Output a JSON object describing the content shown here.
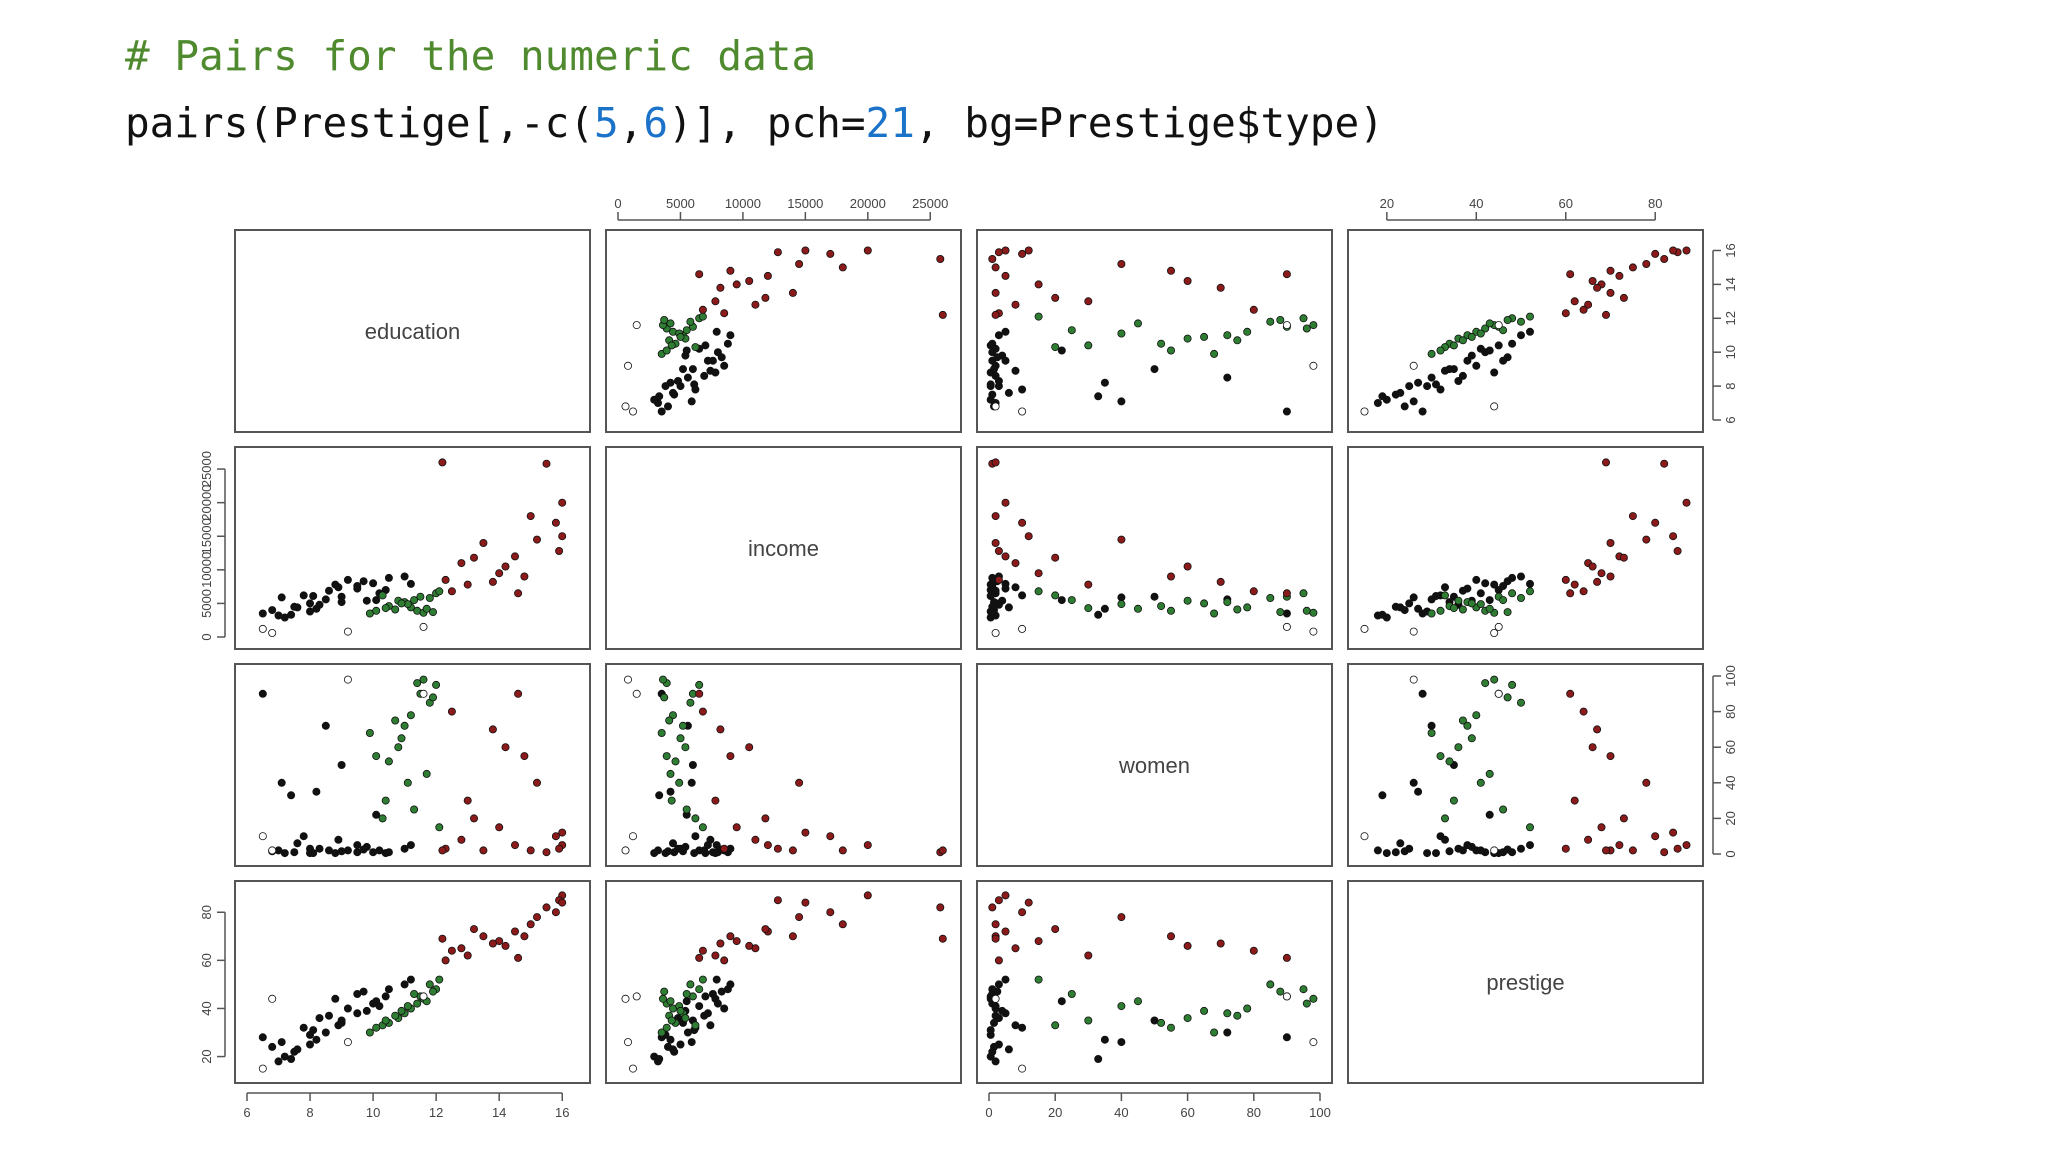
{
  "code": {
    "comment": "# Pairs for the numeric data",
    "parts": [
      {
        "text": "pairs(Prestige[,-c(",
        "kind": "plain"
      },
      {
        "text": "5",
        "kind": "num"
      },
      {
        "text": ",",
        "kind": "plain"
      },
      {
        "text": "6",
        "kind": "num"
      },
      {
        "text": ")], pch=",
        "kind": "plain"
      },
      {
        "text": "21",
        "kind": "num"
      },
      {
        "text": ", bg=Prestige$type)",
        "kind": "plain"
      }
    ]
  },
  "chart_data": {
    "type": "scatter",
    "title": "",
    "matrix": "pairs",
    "variables": [
      "education",
      "income",
      "women",
      "prestige"
    ],
    "ranges": {
      "education": [
        6,
        16.5
      ],
      "income": [
        0,
        26500
      ],
      "women": [
        0,
        100
      ],
      "prestige": [
        14,
        88
      ]
    },
    "ticks": {
      "education": [
        6,
        8,
        10,
        12,
        14,
        16
      ],
      "income": [
        0,
        5000,
        10000,
        15000,
        20000,
        25000
      ],
      "women": [
        0,
        20,
        40,
        60,
        80,
        100
      ],
      "prestige": [
        20,
        40,
        60,
        80
      ]
    },
    "tick_labels": {
      "education": [
        "6",
        "8",
        "10",
        "12",
        "14",
        "16"
      ],
      "income": [
        "0",
        "5000",
        "10000",
        "15000",
        "20000",
        "25000"
      ],
      "women": [
        "0",
        "20",
        "40",
        "60",
        "80",
        "100"
      ],
      "prestige": [
        "20",
        "40",
        "60",
        "80"
      ]
    },
    "axis_placement": {
      "top": [
        [
          1,
          "income"
        ],
        [
          3,
          "prestige"
        ]
      ],
      "right": [
        [
          0,
          "education"
        ],
        [
          2,
          "women"
        ]
      ],
      "bottom": [
        [
          0,
          "education"
        ],
        [
          2,
          "women"
        ]
      ],
      "left": [
        [
          1,
          "income"
        ],
        [
          3,
          "prestige"
        ]
      ]
    },
    "colors": {
      "bc": "#111111",
      "wc": "#2e7d32",
      "prof": "#8b1a1a",
      "na": "#ffffff"
    },
    "series": [
      {
        "group": "bc",
        "fill": "#111111",
        "points": [
          [
            7.0,
            3200,
            2.0,
            18
          ],
          [
            7.5,
            4500,
            1.0,
            22
          ],
          [
            8.0,
            5000,
            3.0,
            25
          ],
          [
            8.2,
            4200,
            35.0,
            27
          ],
          [
            6.5,
            3500,
            90.0,
            28
          ],
          [
            7.2,
            2900,
            0.5,
            20
          ],
          [
            8.5,
            5600,
            72.0,
            30
          ],
          [
            9.0,
            6000,
            50.0,
            35
          ],
          [
            9.5,
            7200,
            5.0,
            38
          ],
          [
            10.0,
            8000,
            1.0,
            42
          ],
          [
            8.8,
            7800,
            0.5,
            44
          ],
          [
            9.2,
            8500,
            2.0,
            40
          ],
          [
            10.4,
            7000,
            0.5,
            45
          ],
          [
            7.8,
            6200,
            10.0,
            32
          ],
          [
            8.3,
            4800,
            3.0,
            36
          ],
          [
            9.8,
            5400,
            4.0,
            39
          ],
          [
            10.2,
            6500,
            2.0,
            41
          ],
          [
            7.1,
            5900,
            40.0,
            26
          ],
          [
            6.8,
            4000,
            1.5,
            24
          ],
          [
            8.0,
            3800,
            0.5,
            29
          ],
          [
            10.5,
            8800,
            1.0,
            48
          ],
          [
            11.0,
            9000,
            3.0,
            50
          ],
          [
            9.5,
            7600,
            1.0,
            46
          ],
          [
            8.6,
            6900,
            2.0,
            37
          ],
          [
            7.4,
            3300,
            33.0,
            19
          ],
          [
            9.0,
            5200,
            1.5,
            34
          ],
          [
            10.1,
            5500,
            22.0,
            43
          ],
          [
            8.1,
            6100,
            0.5,
            31
          ],
          [
            11.2,
            7900,
            5.0,
            52
          ],
          [
            9.7,
            8300,
            2.5,
            47
          ],
          [
            8.9,
            7400,
            8.0,
            33
          ],
          [
            7.6,
            4400,
            6.0,
            23
          ]
        ]
      },
      {
        "group": "wc",
        "fill": "#2e7d32",
        "points": [
          [
            9.9,
            3500,
            68.0,
            30
          ],
          [
            10.5,
            4600,
            52.0,
            34
          ],
          [
            11.0,
            5200,
            72.0,
            38
          ],
          [
            11.4,
            3900,
            96.0,
            42
          ],
          [
            11.5,
            6000,
            90.0,
            45
          ],
          [
            10.8,
            5400,
            60.0,
            36
          ],
          [
            11.2,
            4400,
            78.0,
            40
          ],
          [
            12.0,
            6500,
            95.0,
            48
          ],
          [
            11.6,
            3600,
            98.0,
            44
          ],
          [
            11.1,
            4900,
            40.0,
            41
          ],
          [
            10.3,
            6200,
            20.0,
            33
          ],
          [
            11.8,
            5800,
            85.0,
            50
          ],
          [
            10.7,
            4100,
            75.0,
            37
          ],
          [
            11.3,
            5500,
            25.0,
            46
          ],
          [
            10.1,
            3900,
            55.0,
            32
          ],
          [
            11.7,
            4200,
            45.0,
            43
          ],
          [
            12.1,
            6800,
            15.0,
            52
          ],
          [
            10.9,
            5000,
            65.0,
            39
          ],
          [
            11.9,
            3700,
            88.0,
            47
          ],
          [
            10.4,
            4300,
            30.0,
            35
          ]
        ]
      },
      {
        "group": "prof",
        "fill": "#8b1a1a",
        "points": [
          [
            12.3,
            8500,
            3.0,
            60
          ],
          [
            12.8,
            11000,
            8.0,
            65
          ],
          [
            13.5,
            14000,
            2.0,
            70
          ],
          [
            14.0,
            9500,
            15.0,
            68
          ],
          [
            14.5,
            12000,
            5.0,
            72
          ],
          [
            15.0,
            18000,
            2.0,
            75
          ],
          [
            15.5,
            25800,
            1.0,
            82
          ],
          [
            16.0,
            20000,
            5.0,
            87
          ],
          [
            15.8,
            17000,
            10.0,
            80
          ],
          [
            14.2,
            10500,
            60.0,
            66
          ],
          [
            13.0,
            7800,
            30.0,
            62
          ],
          [
            12.5,
            6800,
            80.0,
            64
          ],
          [
            15.2,
            14500,
            40.0,
            78
          ],
          [
            15.9,
            12800,
            3.0,
            85
          ],
          [
            14.8,
            9000,
            55.0,
            70
          ],
          [
            13.8,
            8200,
            70.0,
            67
          ],
          [
            12.2,
            26000,
            2.0,
            69
          ],
          [
            16.0,
            15000,
            12.0,
            84
          ],
          [
            14.6,
            6500,
            90.0,
            61
          ],
          [
            13.2,
            11800,
            20.0,
            73
          ]
        ]
      },
      {
        "group": "na",
        "fill": "#ffffff",
        "points": [
          [
            6.5,
            1200,
            10.0,
            15
          ],
          [
            9.2,
            800,
            98.0,
            26
          ],
          [
            11.6,
            1500,
            90.0,
            45
          ],
          [
            6.8,
            600,
            2.0,
            44
          ]
        ]
      }
    ]
  }
}
